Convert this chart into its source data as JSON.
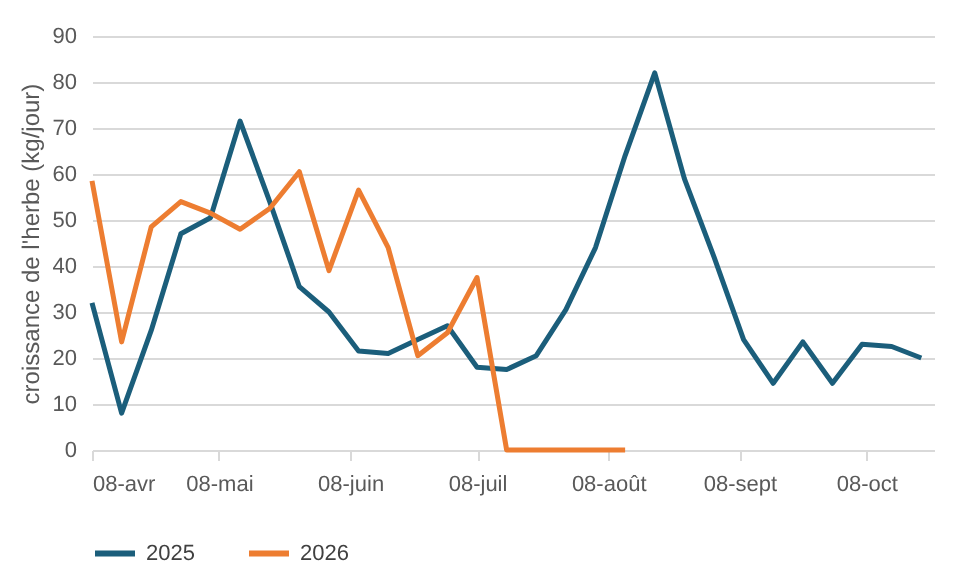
{
  "chart_data": {
    "type": "line",
    "ylabel": "croissance de l'herbe (kg/jour)",
    "ylim": [
      0,
      90
    ],
    "yticks": [
      0,
      10,
      20,
      30,
      40,
      50,
      60,
      70,
      80,
      90
    ],
    "xlim": [
      "--04-08",
      "--10-24"
    ],
    "xticks": [
      {
        "value": "--04-08",
        "label": "08-avr"
      },
      {
        "value": "--05-08",
        "label": "08-mai"
      },
      {
        "value": "--06-08",
        "label": "08-juin"
      },
      {
        "value": "--07-08",
        "label": "08-juil"
      },
      {
        "value": "--08-08",
        "label": "08-août"
      },
      {
        "value": "--09-08",
        "label": "08-sept"
      },
      {
        "value": "--10-08",
        "label": "08-oct"
      }
    ],
    "grid": "y",
    "legend": "bottom",
    "marker": "none",
    "line_style": "solid",
    "series": [
      {
        "name": "2025",
        "color": "#1b5e7b",
        "x": [
          "--04-08",
          "--04-15",
          "--04-22",
          "--04-29",
          "--05-06",
          "--05-13",
          "--05-20",
          "--05-27",
          "--06-03",
          "--06-10",
          "--06-17",
          "--06-24",
          "--07-01",
          "--07-08",
          "--07-15",
          "--07-22",
          "--07-29",
          "--08-05",
          "--08-12",
          "--08-19",
          "--08-26",
          "--09-02",
          "--09-09",
          "--09-16",
          "--09-23",
          "--09-30",
          "--10-07",
          "--10-14",
          "--10-21"
        ],
        "values": [
          32,
          8,
          26,
          47,
          50.5,
          71.5,
          54,
          35.5,
          30,
          21.5,
          21,
          24,
          27,
          18,
          17.5,
          20.5,
          30.5,
          44,
          64,
          82,
          59,
          42,
          24,
          14.5,
          23.5,
          14.5,
          23,
          22.5,
          20
        ]
      },
      {
        "name": "2026",
        "color": "#ed7d31",
        "x": [
          "--04-08",
          "--04-15",
          "--04-22",
          "--04-29",
          "--05-06",
          "--05-13",
          "--05-20",
          "--05-27",
          "--06-03",
          "--06-10",
          "--06-17",
          "--06-24",
          "--07-01",
          "--07-08",
          "--07-15",
          "--07-22",
          "--07-29",
          "--08-05",
          "--08-12"
        ],
        "values": [
          58.5,
          23.5,
          48.5,
          54,
          51.5,
          48,
          52.5,
          60.5,
          39,
          56.5,
          44,
          20.5,
          25.5,
          37.5,
          0,
          0,
          0,
          0,
          0
        ]
      }
    ]
  }
}
